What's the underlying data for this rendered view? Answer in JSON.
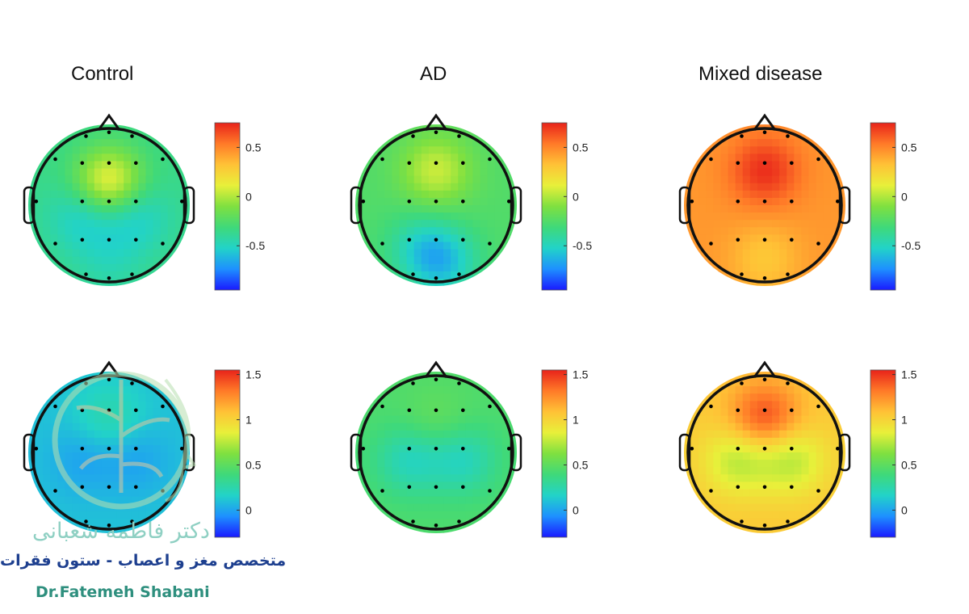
{
  "chart_data": {
    "type": "heatmap",
    "subtype": "eeg-topographic-map",
    "columns": [
      "Control",
      "AD",
      "Mixed disease"
    ],
    "colormap": [
      "#1a1aff",
      "#1e90ff",
      "#22d3c8",
      "#3fd97a",
      "#7fe040",
      "#e8f03a",
      "#ffc236",
      "#ff7a28",
      "#e8231a"
    ],
    "rows": [
      {
        "range": [
          -0.95,
          0.75
        ],
        "ticks": [
          "0.5",
          "0",
          "-0.5"
        ],
        "tick_values": [
          0.5,
          0,
          -0.5
        ],
        "maps": [
          {
            "condition": "Control",
            "base": -0.35,
            "peaks": [
              [
                0.0,
                -0.3,
                0.15
              ],
              [
                -0.35,
                0.15,
                -0.55
              ],
              [
                0.35,
                0.15,
                -0.55
              ],
              [
                0.0,
                0.7,
                -0.45
              ]
            ]
          },
          {
            "condition": "AD",
            "base": -0.25,
            "peaks": [
              [
                0.0,
                -0.45,
                0.05
              ],
              [
                0.1,
                0.75,
                -0.55
              ],
              [
                -0.2,
                0.55,
                -0.45
              ]
            ]
          },
          {
            "condition": "Mixed disease",
            "base": 0.45,
            "peaks": [
              [
                0.0,
                -0.45,
                0.72
              ],
              [
                0.0,
                0.7,
                0.3
              ]
            ]
          }
        ]
      },
      {
        "range": [
          -0.3,
          1.55
        ],
        "ticks": [
          "1.5",
          "1",
          "0.5",
          "0"
        ],
        "tick_values": [
          1.5,
          1,
          0.5,
          0
        ],
        "maps": [
          {
            "condition": "Control",
            "base": 0.1,
            "peaks": [
              [
                0.0,
                -0.45,
                0.25
              ],
              [
                -0.35,
                0.1,
                0.0
              ],
              [
                0.35,
                0.1,
                0.0
              ]
            ]
          },
          {
            "condition": "AD",
            "base": 0.45,
            "peaks": [
              [
                0.0,
                -0.35,
                0.55
              ],
              [
                -0.35,
                0.1,
                0.2
              ],
              [
                0.35,
                0.1,
                0.2
              ]
            ]
          },
          {
            "condition": "Mixed disease",
            "base": 1.05,
            "peaks": [
              [
                0.0,
                -0.45,
                1.45
              ],
              [
                -0.35,
                0.1,
                0.75
              ],
              [
                0.35,
                0.1,
                0.75
              ]
            ]
          }
        ]
      }
    ],
    "electrodes": [
      [
        0,
        -0.95
      ],
      [
        -0.3,
        -0.9
      ],
      [
        0.3,
        -0.9
      ],
      [
        -0.7,
        -0.6
      ],
      [
        -0.35,
        -0.55
      ],
      [
        0,
        -0.55
      ],
      [
        0.35,
        -0.55
      ],
      [
        0.7,
        -0.6
      ],
      [
        -0.95,
        -0.05
      ],
      [
        -0.35,
        -0.05
      ],
      [
        0,
        -0.05
      ],
      [
        0.35,
        -0.05
      ],
      [
        0.95,
        -0.05
      ],
      [
        -0.7,
        0.5
      ],
      [
        -0.35,
        0.45
      ],
      [
        0,
        0.45
      ],
      [
        0.35,
        0.45
      ],
      [
        0.7,
        0.5
      ],
      [
        -0.3,
        0.9
      ],
      [
        0,
        0.95
      ],
      [
        0.3,
        0.9
      ]
    ]
  },
  "watermark": {
    "name_fa": "دکتر فاطمه شعبانی",
    "subtitle_fa": "متخصص مغز و اعصاب - ستون فقرات",
    "name_en": "Dr.Fatemeh Shabani"
  }
}
